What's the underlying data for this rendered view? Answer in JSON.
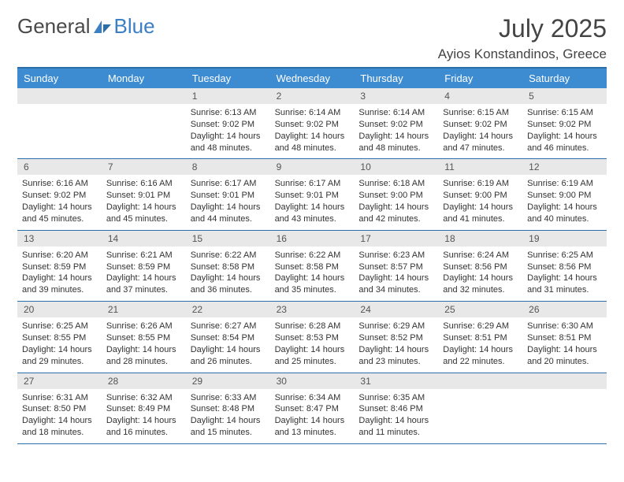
{
  "branding": {
    "logo_word1": "General",
    "logo_word2": "Blue",
    "logo_color_text": "#4a4a4a",
    "logo_color_accent": "#3b7fc4"
  },
  "title": {
    "month": "July 2025",
    "location": "Ayios Konstandinos, Greece"
  },
  "colors": {
    "header_bg": "#3d8bd0",
    "header_text": "#ffffff",
    "border": "#2c6fa8",
    "date_bg": "#e8e8e8",
    "date_text": "#555555",
    "body_text": "#333333",
    "page_bg": "#ffffff"
  },
  "day_headers": [
    "Sunday",
    "Monday",
    "Tuesday",
    "Wednesday",
    "Thursday",
    "Friday",
    "Saturday"
  ],
  "weeks": [
    [
      {
        "date": "",
        "lines": []
      },
      {
        "date": "",
        "lines": []
      },
      {
        "date": "1",
        "lines": [
          "Sunrise: 6:13 AM",
          "Sunset: 9:02 PM",
          "Daylight: 14 hours",
          "and 48 minutes."
        ]
      },
      {
        "date": "2",
        "lines": [
          "Sunrise: 6:14 AM",
          "Sunset: 9:02 PM",
          "Daylight: 14 hours",
          "and 48 minutes."
        ]
      },
      {
        "date": "3",
        "lines": [
          "Sunrise: 6:14 AM",
          "Sunset: 9:02 PM",
          "Daylight: 14 hours",
          "and 48 minutes."
        ]
      },
      {
        "date": "4",
        "lines": [
          "Sunrise: 6:15 AM",
          "Sunset: 9:02 PM",
          "Daylight: 14 hours",
          "and 47 minutes."
        ]
      },
      {
        "date": "5",
        "lines": [
          "Sunrise: 6:15 AM",
          "Sunset: 9:02 PM",
          "Daylight: 14 hours",
          "and 46 minutes."
        ]
      }
    ],
    [
      {
        "date": "6",
        "lines": [
          "Sunrise: 6:16 AM",
          "Sunset: 9:02 PM",
          "Daylight: 14 hours",
          "and 45 minutes."
        ]
      },
      {
        "date": "7",
        "lines": [
          "Sunrise: 6:16 AM",
          "Sunset: 9:01 PM",
          "Daylight: 14 hours",
          "and 45 minutes."
        ]
      },
      {
        "date": "8",
        "lines": [
          "Sunrise: 6:17 AM",
          "Sunset: 9:01 PM",
          "Daylight: 14 hours",
          "and 44 minutes."
        ]
      },
      {
        "date": "9",
        "lines": [
          "Sunrise: 6:17 AM",
          "Sunset: 9:01 PM",
          "Daylight: 14 hours",
          "and 43 minutes."
        ]
      },
      {
        "date": "10",
        "lines": [
          "Sunrise: 6:18 AM",
          "Sunset: 9:00 PM",
          "Daylight: 14 hours",
          "and 42 minutes."
        ]
      },
      {
        "date": "11",
        "lines": [
          "Sunrise: 6:19 AM",
          "Sunset: 9:00 PM",
          "Daylight: 14 hours",
          "and 41 minutes."
        ]
      },
      {
        "date": "12",
        "lines": [
          "Sunrise: 6:19 AM",
          "Sunset: 9:00 PM",
          "Daylight: 14 hours",
          "and 40 minutes."
        ]
      }
    ],
    [
      {
        "date": "13",
        "lines": [
          "Sunrise: 6:20 AM",
          "Sunset: 8:59 PM",
          "Daylight: 14 hours",
          "and 39 minutes."
        ]
      },
      {
        "date": "14",
        "lines": [
          "Sunrise: 6:21 AM",
          "Sunset: 8:59 PM",
          "Daylight: 14 hours",
          "and 37 minutes."
        ]
      },
      {
        "date": "15",
        "lines": [
          "Sunrise: 6:22 AM",
          "Sunset: 8:58 PM",
          "Daylight: 14 hours",
          "and 36 minutes."
        ]
      },
      {
        "date": "16",
        "lines": [
          "Sunrise: 6:22 AM",
          "Sunset: 8:58 PM",
          "Daylight: 14 hours",
          "and 35 minutes."
        ]
      },
      {
        "date": "17",
        "lines": [
          "Sunrise: 6:23 AM",
          "Sunset: 8:57 PM",
          "Daylight: 14 hours",
          "and 34 minutes."
        ]
      },
      {
        "date": "18",
        "lines": [
          "Sunrise: 6:24 AM",
          "Sunset: 8:56 PM",
          "Daylight: 14 hours",
          "and 32 minutes."
        ]
      },
      {
        "date": "19",
        "lines": [
          "Sunrise: 6:25 AM",
          "Sunset: 8:56 PM",
          "Daylight: 14 hours",
          "and 31 minutes."
        ]
      }
    ],
    [
      {
        "date": "20",
        "lines": [
          "Sunrise: 6:25 AM",
          "Sunset: 8:55 PM",
          "Daylight: 14 hours",
          "and 29 minutes."
        ]
      },
      {
        "date": "21",
        "lines": [
          "Sunrise: 6:26 AM",
          "Sunset: 8:55 PM",
          "Daylight: 14 hours",
          "and 28 minutes."
        ]
      },
      {
        "date": "22",
        "lines": [
          "Sunrise: 6:27 AM",
          "Sunset: 8:54 PM",
          "Daylight: 14 hours",
          "and 26 minutes."
        ]
      },
      {
        "date": "23",
        "lines": [
          "Sunrise: 6:28 AM",
          "Sunset: 8:53 PM",
          "Daylight: 14 hours",
          "and 25 minutes."
        ]
      },
      {
        "date": "24",
        "lines": [
          "Sunrise: 6:29 AM",
          "Sunset: 8:52 PM",
          "Daylight: 14 hours",
          "and 23 minutes."
        ]
      },
      {
        "date": "25",
        "lines": [
          "Sunrise: 6:29 AM",
          "Sunset: 8:51 PM",
          "Daylight: 14 hours",
          "and 22 minutes."
        ]
      },
      {
        "date": "26",
        "lines": [
          "Sunrise: 6:30 AM",
          "Sunset: 8:51 PM",
          "Daylight: 14 hours",
          "and 20 minutes."
        ]
      }
    ],
    [
      {
        "date": "27",
        "lines": [
          "Sunrise: 6:31 AM",
          "Sunset: 8:50 PM",
          "Daylight: 14 hours",
          "and 18 minutes."
        ]
      },
      {
        "date": "28",
        "lines": [
          "Sunrise: 6:32 AM",
          "Sunset: 8:49 PM",
          "Daylight: 14 hours",
          "and 16 minutes."
        ]
      },
      {
        "date": "29",
        "lines": [
          "Sunrise: 6:33 AM",
          "Sunset: 8:48 PM",
          "Daylight: 14 hours",
          "and 15 minutes."
        ]
      },
      {
        "date": "30",
        "lines": [
          "Sunrise: 6:34 AM",
          "Sunset: 8:47 PM",
          "Daylight: 14 hours",
          "and 13 minutes."
        ]
      },
      {
        "date": "31",
        "lines": [
          "Sunrise: 6:35 AM",
          "Sunset: 8:46 PM",
          "Daylight: 14 hours",
          "and 11 minutes."
        ]
      },
      {
        "date": "",
        "lines": []
      },
      {
        "date": "",
        "lines": []
      }
    ]
  ]
}
